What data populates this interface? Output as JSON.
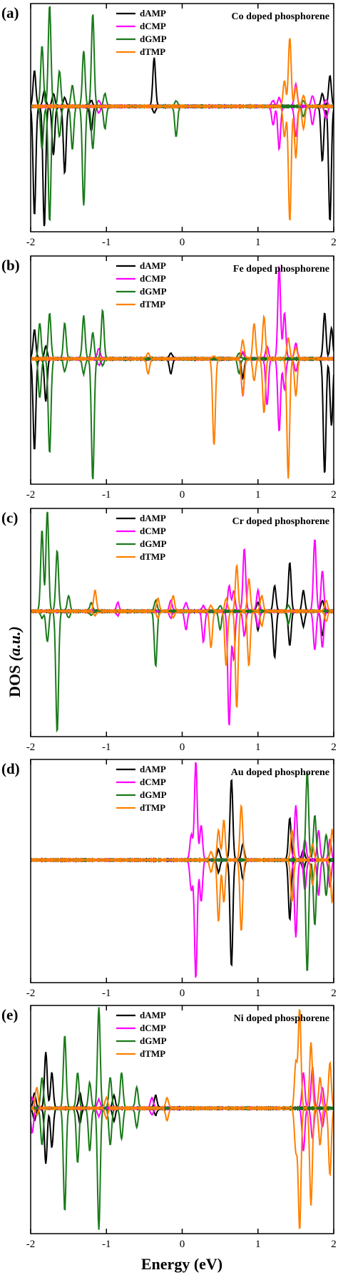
{
  "figure": {
    "xlabel": "Energy (eV)",
    "ylabel_main": "DOS ",
    "ylabel_unit": "(a.u.)"
  },
  "chart_data": [
    {
      "type": "line",
      "panel": "(a)",
      "title": "Co doped phosphorene",
      "xlim": [
        -2,
        2
      ],
      "xticks": [
        -2,
        -1,
        0,
        1,
        2
      ],
      "ylim": [
        -1,
        1
      ],
      "legend": "top-center",
      "colors": {
        "dAMP": "#000000",
        "dCMP": "#ff00ff",
        "dGMP": "#1a7a1a",
        "dTMP": "#ff8000"
      },
      "series": [
        {
          "name": "dAMP",
          "peaks": [
            [
              -1.95,
              0.35,
              -0.9
            ],
            [
              -1.82,
              0.15,
              -1.0
            ],
            [
              -1.7,
              0.12,
              -0.4
            ],
            [
              -1.55,
              0.08,
              -0.55
            ],
            [
              -1.2,
              0.05,
              -0.2
            ],
            [
              -0.37,
              0.48,
              -0.05
            ],
            [
              1.85,
              0.12,
              -0.45
            ],
            [
              1.95,
              0.3,
              -0.95
            ]
          ]
        },
        {
          "name": "dCMP",
          "peaks": [
            [
              -1.1,
              0.05,
              -0.05
            ],
            [
              1.2,
              0.05,
              -0.15
            ],
            [
              1.28,
              0.08,
              -0.35
            ],
            [
              1.5,
              0.22,
              -0.25
            ],
            [
              1.72,
              0.1,
              -0.15
            ],
            [
              1.9,
              0.06,
              -0.1
            ]
          ]
        },
        {
          "name": "dGMP",
          "peaks": [
            [
              -1.85,
              0.6,
              -0.35
            ],
            [
              -1.75,
              1.0,
              -0.95
            ],
            [
              -1.62,
              0.35,
              -0.25
            ],
            [
              -1.45,
              0.2,
              -0.35
            ],
            [
              -1.3,
              0.55,
              -0.82
            ],
            [
              -1.18,
              0.92,
              -0.35
            ],
            [
              -1.02,
              0.12,
              -0.18
            ],
            [
              -0.08,
              0.05,
              -0.25
            ],
            [
              1.6,
              0.05,
              -0.08
            ]
          ]
        },
        {
          "name": "dTMP",
          "peaks": [
            [
              1.35,
              0.25,
              -0.25
            ],
            [
              1.42,
              0.68,
              -0.95
            ],
            [
              1.5,
              0.18,
              -0.42
            ],
            [
              1.6,
              0.1,
              -0.18
            ]
          ]
        }
      ]
    },
    {
      "type": "line",
      "panel": "(b)",
      "title": "Fe doped phosphorene",
      "xlim": [
        -2,
        2
      ],
      "xticks": [
        -2,
        -1,
        0,
        1,
        2
      ],
      "ylim": [
        -1,
        1
      ],
      "legend": "top-center",
      "colors": {
        "dAMP": "#000000",
        "dCMP": "#ff00ff",
        "dGMP": "#1a7a1a",
        "dTMP": "#ff8000"
      },
      "series": [
        {
          "name": "dAMP",
          "peaks": [
            [
              -1.95,
              0.28,
              -0.75
            ],
            [
              -1.8,
              0.12,
              -0.35
            ],
            [
              -0.15,
              0.05,
              -0.12
            ],
            [
              0.8,
              0.05,
              -0.15
            ],
            [
              1.88,
              0.45,
              -0.95
            ],
            [
              1.97,
              0.3,
              -0.55
            ]
          ]
        },
        {
          "name": "dCMP",
          "peaks": [
            [
              -1.1,
              0.1,
              -0.05
            ],
            [
              0.8,
              0.06,
              -0.3
            ],
            [
              1.12,
              0.12,
              -0.38
            ],
            [
              1.28,
              0.92,
              -0.6
            ],
            [
              1.35,
              0.45,
              -0.25
            ],
            [
              1.5,
              0.15,
              -0.1
            ]
          ]
        },
        {
          "name": "dGMP",
          "peaks": [
            [
              -1.88,
              0.35,
              -0.32
            ],
            [
              -1.75,
              0.45,
              -0.78
            ],
            [
              -1.55,
              0.35,
              -0.1
            ],
            [
              -1.3,
              0.42,
              -0.12
            ],
            [
              -1.18,
              0.25,
              -1.0
            ],
            [
              -1.05,
              0.48,
              -0.05
            ],
            [
              0.75,
              0.05,
              -0.12
            ]
          ]
        },
        {
          "name": "dTMP",
          "peaks": [
            [
              -0.45,
              0.05,
              -0.12
            ],
            [
              0.42,
              0.02,
              -0.72
            ],
            [
              0.8,
              0.18,
              -0.3
            ],
            [
              0.95,
              0.35,
              -0.18
            ],
            [
              1.08,
              0.42,
              -0.45
            ],
            [
              1.4,
              0.2,
              -0.98
            ],
            [
              1.5,
              0.1,
              -0.3
            ]
          ]
        }
      ]
    },
    {
      "type": "line",
      "panel": "(c)",
      "title": "Cr doped phosphorene",
      "xlim": [
        -2,
        2
      ],
      "xticks": [
        -2,
        -1,
        0,
        1,
        2
      ],
      "ylim": [
        -1,
        1
      ],
      "legend": "top-center",
      "colors": {
        "dAMP": "#000000",
        "dCMP": "#ff00ff",
        "dGMP": "#1a7a1a",
        "dTMP": "#ff8000"
      },
      "series": [
        {
          "name": "dAMP",
          "peaks": [
            [
              1.0,
              0.08,
              -0.15
            ],
            [
              1.22,
              0.25,
              -0.38
            ],
            [
              1.42,
              0.48,
              -0.28
            ],
            [
              1.6,
              0.2,
              -0.12
            ],
            [
              1.85,
              0.1,
              -0.2
            ]
          ]
        },
        {
          "name": "dCMP",
          "peaks": [
            [
              -0.85,
              0.08,
              -0.03
            ],
            [
              -0.15,
              0.1,
              -0.05
            ],
            [
              0.05,
              0.08,
              -0.15
            ],
            [
              0.28,
              0.05,
              -0.25
            ],
            [
              0.62,
              0.25,
              -0.95
            ],
            [
              0.68,
              0.2,
              -0.4
            ],
            [
              0.82,
              0.62,
              -0.2
            ],
            [
              1.0,
              0.2,
              -0.12
            ],
            [
              1.75,
              0.72,
              -0.32
            ],
            [
              1.85,
              0.4,
              -0.3
            ]
          ]
        },
        {
          "name": "dGMP",
          "peaks": [
            [
              -1.85,
              0.8,
              -0.05
            ],
            [
              -1.78,
              1.0,
              -0.25
            ],
            [
              -1.65,
              0.6,
              -1.0
            ],
            [
              -1.5,
              0.15,
              -0.05
            ],
            [
              -1.2,
              0.08,
              -0.03
            ],
            [
              -0.35,
              0.1,
              -0.45
            ],
            [
              0.5,
              0.05,
              -0.15
            ],
            [
              1.4,
              0.05,
              -0.1
            ]
          ]
        },
        {
          "name": "dTMP",
          "peaks": [
            [
              -1.15,
              0.2,
              -0.03
            ],
            [
              -0.32,
              0.12,
              -0.05
            ],
            [
              -0.12,
              0.15,
              -0.05
            ],
            [
              0.38,
              0.05,
              -0.3
            ],
            [
              0.58,
              0.12,
              -0.45
            ],
            [
              0.72,
              0.45,
              -0.8
            ],
            [
              0.88,
              0.32,
              -0.45
            ],
            [
              1.05,
              0.15,
              -0.12
            ],
            [
              1.9,
              0.1,
              -0.08
            ]
          ]
        }
      ]
    },
    {
      "type": "line",
      "panel": "(d)",
      "title": "Au doped phosphorene",
      "xlim": [
        -2,
        2
      ],
      "xticks": [
        -2,
        -1,
        0,
        1,
        2
      ],
      "ylim": [
        -1,
        1
      ],
      "legend": "top-center",
      "colors": {
        "dAMP": "#000000",
        "dCMP": "#ff00ff",
        "dGMP": "#1a7a1a",
        "dTMP": "#ff8000"
      },
      "series": [
        {
          "name": "dAMP",
          "peaks": [
            [
              0.48,
              0.1,
              -0.1
            ],
            [
              0.65,
              0.82,
              -0.9
            ],
            [
              0.8,
              0.15,
              -0.15
            ],
            [
              1.42,
              0.42,
              -0.5
            ],
            [
              1.6,
              0.1,
              -0.08
            ]
          ]
        },
        {
          "name": "dCMP",
          "peaks": [
            [
              0.12,
              0.25,
              -0.25
            ],
            [
              0.18,
              1.0,
              -1.0
            ],
            [
              0.25,
              0.35,
              -0.35
            ],
            [
              1.5,
              0.55,
              -0.65
            ],
            [
              1.62,
              0.2,
              -0.25
            ],
            [
              1.8,
              0.3,
              -0.3
            ],
            [
              1.95,
              0.2,
              -0.22
            ]
          ]
        },
        {
          "name": "dGMP",
          "peaks": [
            [
              1.65,
              0.9,
              -0.95
            ],
            [
              1.75,
              0.45,
              -0.55
            ],
            [
              1.9,
              0.25,
              -0.3
            ]
          ]
        },
        {
          "name": "dTMP",
          "peaks": [
            [
              0.38,
              0.08,
              -0.1
            ],
            [
              0.48,
              0.3,
              -0.52
            ],
            [
              0.55,
              0.4,
              -0.35
            ],
            [
              0.78,
              0.55,
              -0.6
            ],
            [
              1.45,
              0.3,
              -0.35
            ],
            [
              1.72,
              0.15,
              -0.2
            ],
            [
              1.98,
              0.3,
              -0.35
            ]
          ]
        }
      ]
    },
    {
      "type": "line",
      "panel": "(e)",
      "title": "Ni doped phosphorene",
      "xlim": [
        -2,
        2
      ],
      "xticks": [
        -2,
        -1,
        0,
        1,
        2
      ],
      "ylim": [
        -1,
        1
      ],
      "legend": "top-center",
      "colors": {
        "dAMP": "#000000",
        "dCMP": "#ff00ff",
        "dGMP": "#1a7a1a",
        "dTMP": "#ff8000"
      },
      "series": [
        {
          "name": "dAMP",
          "peaks": [
            [
              -1.95,
              0.15,
              -0.1
            ],
            [
              -1.8,
              0.55,
              -0.45
            ],
            [
              -1.72,
              0.35,
              -0.32
            ],
            [
              -1.35,
              0.15,
              -0.12
            ],
            [
              -0.9,
              0.12,
              -0.1
            ],
            [
              -0.35,
              0.12,
              -0.05
            ]
          ]
        },
        {
          "name": "dCMP",
          "peaks": [
            [
              -1.98,
              0.1,
              -0.2
            ],
            [
              -1.1,
              0.08,
              -0.06
            ],
            [
              -0.4,
              0.1,
              -0.05
            ],
            [
              1.6,
              0.35,
              -0.35
            ],
            [
              1.72,
              0.4,
              -0.25
            ],
            [
              1.85,
              0.2,
              -0.15
            ]
          ]
        },
        {
          "name": "dGMP",
          "peaks": [
            [
              -1.85,
              0.3,
              -0.3
            ],
            [
              -1.55,
              0.72,
              -0.85
            ],
            [
              -1.38,
              0.35,
              -0.45
            ],
            [
              -1.22,
              0.25,
              -0.35
            ],
            [
              -1.1,
              1.0,
              -1.0
            ],
            [
              -0.95,
              0.3,
              -0.3
            ],
            [
              -0.8,
              0.35,
              -0.25
            ],
            [
              -0.6,
              0.2,
              -0.15
            ]
          ]
        },
        {
          "name": "dTMP",
          "peaks": [
            [
              -1.92,
              0.2,
              -0.05
            ],
            [
              -1.0,
              0.1,
              -0.08
            ],
            [
              -0.2,
              0.1,
              -0.1
            ],
            [
              1.5,
              0.45,
              -0.35
            ],
            [
              1.55,
              0.98,
              -1.0
            ],
            [
              1.7,
              0.65,
              -0.8
            ],
            [
              1.82,
              0.3,
              -0.3
            ],
            [
              1.95,
              0.45,
              -0.55
            ]
          ]
        }
      ]
    }
  ]
}
